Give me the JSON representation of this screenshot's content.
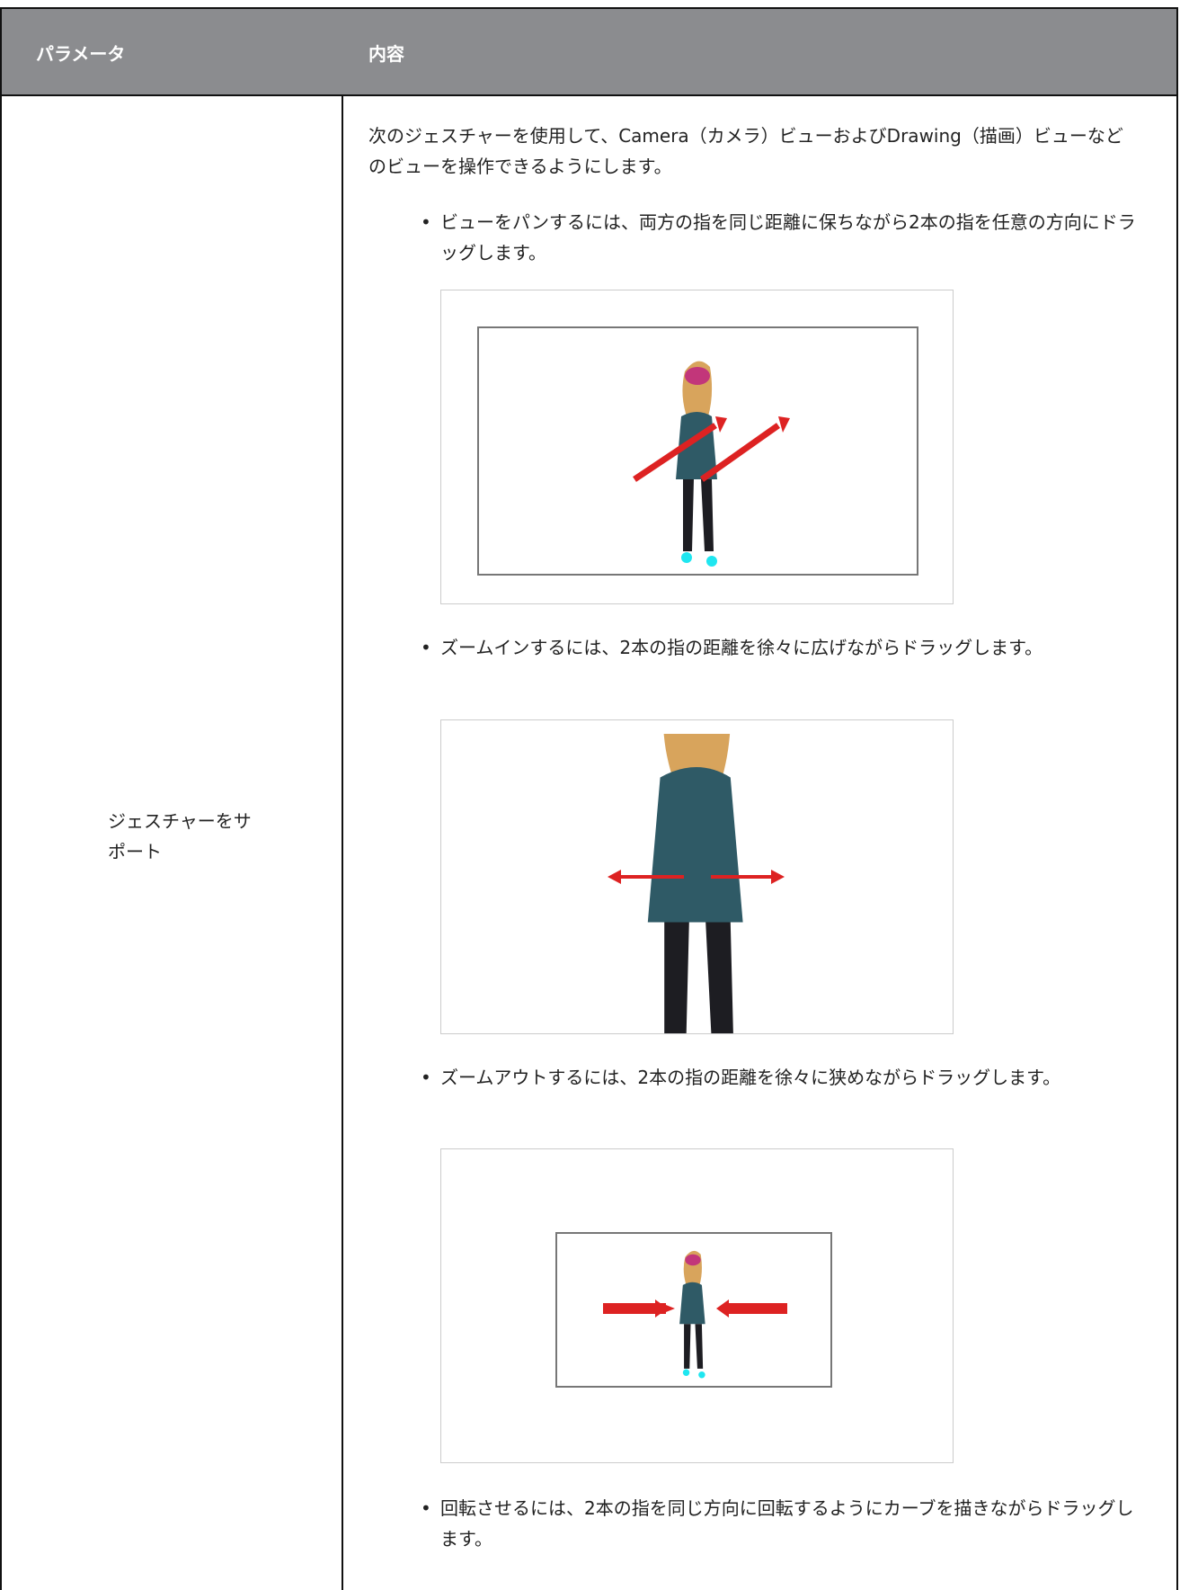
{
  "header": {
    "columns": [
      "パラメータ",
      "内容"
    ]
  },
  "rows": [
    {
      "parameter": "ジェスチャーをサポート",
      "content": {
        "intro": "次のジェスチャーを使用して、Camera（カメラ）ビューおよびDrawing（描画）ビューなどのビューを操作できるようにします。",
        "bullets": [
          "ビューをパンするには、両方の指を同じ距離に保ちながら2本の指を任意の方向にドラッグします。",
          "ズームインするには、2本の指の距離を徐々に広げながらドラッグします。",
          "ズームアウトするには、2本の指の距離を徐々に狭めながらドラッグします。",
          "回転させるには、2本の指を同じ方向に回転するようにカーブを描きながらドラッグします。"
        ]
      }
    }
  ]
}
